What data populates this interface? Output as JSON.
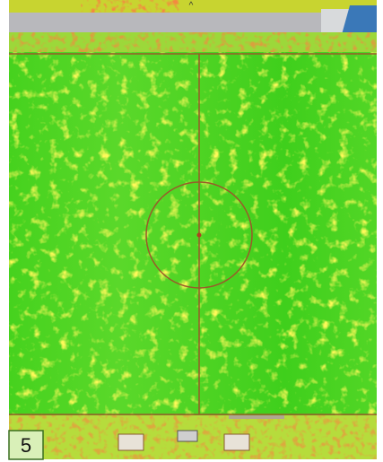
{
  "label": "5"
}
